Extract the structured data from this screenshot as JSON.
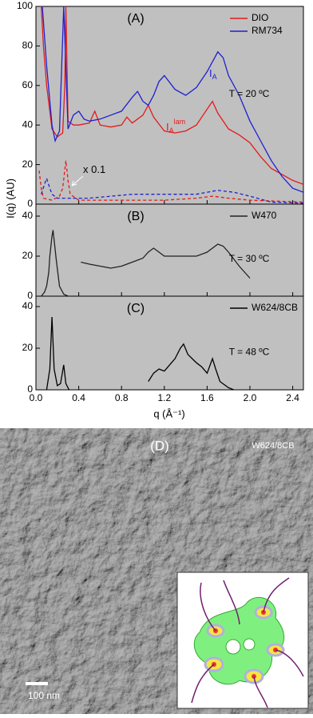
{
  "chart_data": [
    {
      "type": "line",
      "panel_label": "(A)",
      "ylabel": "I(q) (AU)",
      "temperature": "T = 20 ºC",
      "xlim": [
        0,
        2.5
      ],
      "xticks": [
        {
          "value": 0,
          "label": "0.0"
        },
        0.4,
        0.8,
        1.2,
        1.6,
        {
          "value": 2,
          "label": "2.0"
        },
        2.4
      ],
      "show_xtick_labels": false,
      "ylim": [
        0,
        100
      ],
      "yticks": [
        0,
        20,
        40,
        60,
        80,
        100
      ],
      "legend": "upper right",
      "series": [
        {
          "name": "DIO",
          "color": "#e41a1c",
          "x": [
            0.05,
            0.07,
            0.1,
            0.15,
            0.2,
            0.25,
            0.27,
            0.28,
            0.3,
            0.35,
            0.4,
            0.5,
            0.55,
            0.6,
            0.7,
            0.8,
            0.85,
            0.9,
            1.0,
            1.05,
            1.1,
            1.2,
            1.3,
            1.4,
            1.5,
            1.6,
            1.65,
            1.7,
            1.8,
            1.9,
            2.0,
            2.1,
            2.2,
            2.3,
            2.4,
            2.5
          ],
          "values": [
            100,
            80,
            60,
            38,
            34,
            36,
            60,
            100,
            42,
            40,
            40,
            41,
            47,
            40,
            39,
            40,
            44,
            41,
            45,
            50,
            44,
            37,
            36,
            37,
            40,
            48,
            52,
            46,
            38,
            35,
            31,
            24,
            18,
            15,
            12,
            10
          ]
        },
        {
          "name": "RM734",
          "color": "#1f1fd0",
          "x": [
            0.06,
            0.08,
            0.1,
            0.15,
            0.18,
            0.22,
            0.26,
            0.3,
            0.35,
            0.4,
            0.45,
            0.5,
            0.6,
            0.7,
            0.8,
            0.9,
            0.95,
            1.0,
            1.05,
            1.1,
            1.15,
            1.2,
            1.3,
            1.4,
            1.5,
            1.6,
            1.7,
            1.75,
            1.8,
            1.9,
            2.0,
            2.1,
            2.2,
            2.3,
            2.4,
            2.5
          ],
          "values": [
            100,
            85,
            70,
            40,
            32,
            37,
            100,
            38,
            45,
            47,
            43,
            42,
            43,
            45,
            47,
            54,
            57,
            52,
            50,
            55,
            62,
            65,
            58,
            55,
            59,
            67,
            77,
            74,
            65,
            55,
            42,
            32,
            22,
            14,
            8,
            6
          ]
        },
        {
          "color": "#e41a1c",
          "dash": true,
          "x": [
            0.03,
            0.05,
            0.07,
            0.15,
            0.22,
            0.25,
            0.28,
            0.3,
            0.32,
            0.4,
            0.8,
            1.2,
            1.5,
            1.65,
            1.8,
            2.0,
            2.5
          ],
          "values": [
            17,
            8,
            3,
            2,
            4,
            8,
            22,
            12,
            5,
            2,
            2,
            2,
            3,
            4,
            3,
            2,
            1
          ]
        },
        {
          "color": "#1f1fd0",
          "dash": true,
          "x": [
            0.05,
            0.08,
            0.1,
            0.13,
            0.15,
            0.2,
            0.3,
            0.5,
            0.7,
            0.9,
            1.2,
            1.5,
            1.7,
            1.85,
            2.0,
            2.2,
            2.5
          ],
          "values": [
            5,
            10,
            13,
            8,
            5,
            3,
            3,
            3,
            4,
            5,
            5,
            5,
            7,
            6,
            4,
            1,
            0.5
          ]
        }
      ],
      "annotations": [
        {
          "text": "x 0.1"
        },
        {
          "text": "I",
          "sub": "A",
          "color": "#1f1fd0"
        },
        {
          "text": "I",
          "sub": "A",
          "sup": "lam",
          "color": "#e41a1c"
        }
      ]
    },
    {
      "type": "line",
      "panel_label": "(B)",
      "temperature": "T = 30 ºC",
      "xlim": [
        0,
        2.5
      ],
      "xticks": [
        {
          "value": 0,
          "label": "0.0"
        },
        0.4,
        0.8,
        1.2,
        1.6,
        {
          "value": 2,
          "label": "2.0"
        },
        2.4
      ],
      "show_xtick_labels": false,
      "ylim": [
        0,
        46
      ],
      "yticks": [
        0,
        20,
        40
      ],
      "legend": "upper right",
      "series": [
        {
          "name": "W470",
          "color": "#222222",
          "x": [
            0.05,
            0.08,
            0.1,
            0.12,
            0.13,
            0.15,
            0.16,
            0.17,
            0.19,
            0.22,
            0.26,
            0.3,
            0.35,
            0.42,
            0.5,
            0.6,
            0.7,
            0.8,
            0.9,
            1.0,
            1.05,
            1.1,
            1.15,
            1.2,
            1.3,
            1.4,
            1.5,
            1.6,
            1.7,
            1.75,
            1.8,
            1.9,
            2.0
          ],
          "values": [
            0,
            2,
            5,
            12,
            20,
            30,
            33,
            28,
            18,
            5,
            1,
            0,
            null,
            17,
            16,
            15,
            14,
            15,
            17,
            19,
            22,
            24,
            22,
            20,
            20,
            20,
            20,
            22,
            26,
            25,
            22,
            15,
            9
          ]
        }
      ]
    },
    {
      "type": "line",
      "panel_label": "(C)",
      "temperature": "T = 48 ºC",
      "xlabel": "q (Å⁻¹)",
      "xlim": [
        0,
        2.5
      ],
      "xticks": [
        {
          "value": 0,
          "label": "0.0"
        },
        0.4,
        0.8,
        1.2,
        1.6,
        {
          "value": 2,
          "label": "2.0"
        },
        2.4
      ],
      "show_xtick_labels": true,
      "ylim": [
        0,
        45
      ],
      "yticks": [
        0,
        20,
        40
      ],
      "legend": "upper right",
      "series": [
        {
          "name": "W624/8CB",
          "color": "#000000",
          "x": [
            0.1,
            0.13,
            0.15,
            0.17,
            0.2,
            0.23,
            0.26,
            0.28,
            0.31,
            0.4,
            1.05,
            1.1,
            1.15,
            1.2,
            1.25,
            1.3,
            1.35,
            1.38,
            1.42,
            1.46,
            1.5,
            1.55,
            1.6,
            1.65,
            1.68,
            1.72,
            1.8,
            1.85
          ],
          "values": [
            0,
            10,
            35,
            10,
            2,
            3,
            12,
            3,
            0,
            null,
            4,
            8,
            10,
            9,
            12,
            15,
            20,
            22,
            17,
            15,
            13,
            11,
            8,
            15,
            10,
            4,
            1,
            0
          ]
        }
      ]
    }
  ],
  "image_panel": {
    "panel_label": "(D)",
    "sample": "W624/8CB",
    "scale_bar": "100 nm"
  }
}
